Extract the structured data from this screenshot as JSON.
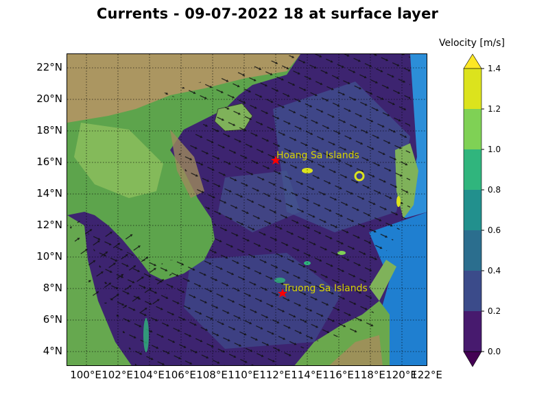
{
  "title": "Currents - 09-07-2022 18 at surface layer",
  "map": {
    "y_axis_labels": [
      "22°N",
      "20°N",
      "18°N",
      "16°N",
      "14°N",
      "12°N",
      "10°N",
      "8°N",
      "6°N",
      "4°N"
    ],
    "x_axis_labels": [
      "100°E",
      "102°E",
      "104°E",
      "106°E",
      "108°E",
      "110°E",
      "112°E",
      "114°E",
      "116°E",
      "118°E",
      "120°E",
      "122°E"
    ],
    "places": [
      {
        "name": "Hoang Sa Islands"
      },
      {
        "name": "Truong Sa Islands"
      }
    ],
    "colors": {
      "sea_low": "#3d2470",
      "sea_mid": "#3f4d8d",
      "land_low": "#5da44c",
      "land_high": "#b99465",
      "deep_ocean": "#1f7fd0",
      "marker": "#ff0000"
    }
  },
  "colorbar": {
    "title": "Velocity [m/s]",
    "ticks": [
      "1.4",
      "1.2",
      "1.0",
      "0.8",
      "0.6",
      "0.4",
      "0.2",
      "0.0"
    ],
    "colors": [
      "#dce31d",
      "#7fd155",
      "#30b57d",
      "#22908d",
      "#2b6e8e",
      "#3b4b8a",
      "#471a6e"
    ]
  }
}
